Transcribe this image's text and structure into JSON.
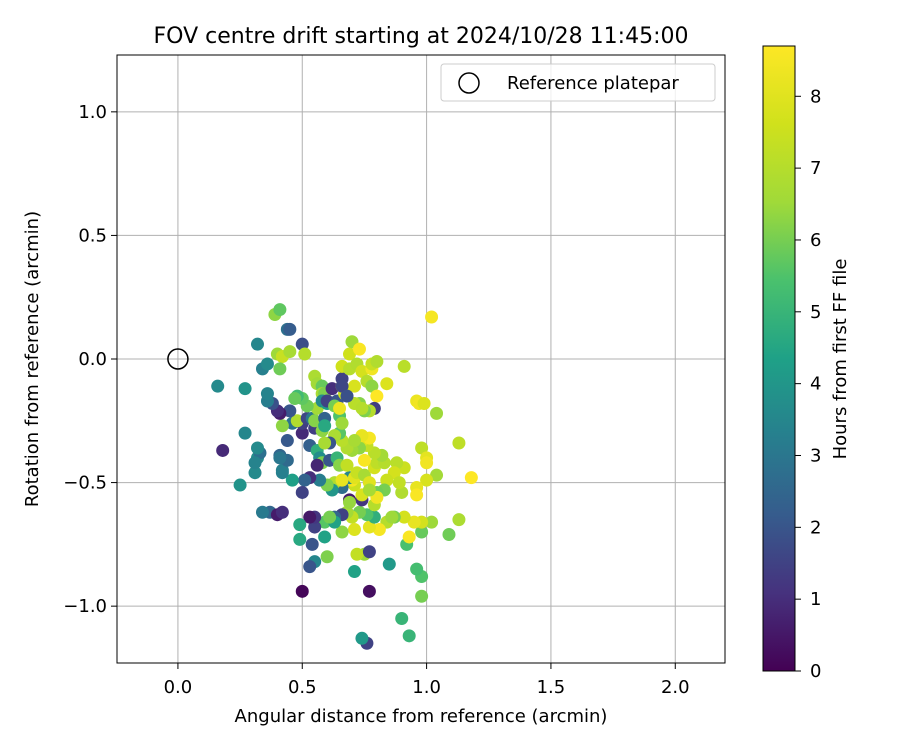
{
  "chart_data": {
    "type": "scatter",
    "title": "FOV centre drift starting at 2024/10/28 11:45:00",
    "xlabel": "Angular distance from reference (arcmin)",
    "ylabel": "Rotation from reference (arcmin)",
    "xlim": [
      -0.245,
      2.2
    ],
    "ylim": [
      -1.23,
      1.23
    ],
    "x_ticks": [
      0.0,
      0.5,
      1.0,
      1.5,
      2.0
    ],
    "x_tick_labels": [
      "0.0",
      "0.5",
      "1.0",
      "1.5",
      "2.0"
    ],
    "y_ticks": [
      -1.0,
      -0.5,
      0.0,
      0.5,
      1.0
    ],
    "y_tick_labels": [
      "−1.0",
      "−0.5",
      "0.0",
      "0.5",
      "1.0"
    ],
    "grid": true,
    "legend": {
      "placement": "top-right",
      "entries": [
        "Reference platepar"
      ]
    },
    "colorbar": {
      "label": "Hours from first FF file",
      "range": [
        0,
        8.7
      ],
      "colormap": "viridis",
      "ticks": [
        0,
        1,
        2,
        3,
        4,
        5,
        6,
        7,
        8
      ],
      "tick_labels": [
        "0",
        "1",
        "2",
        "3",
        "4",
        "5",
        "6",
        "7",
        "8"
      ]
    },
    "reference": {
      "name": "Reference platepar",
      "x": 0.0,
      "y": 0.0
    },
    "series": [
      {
        "points": [
          [
            0.5,
            -0.94,
            0.1
          ],
          [
            0.76,
            -1.15,
            1.5
          ],
          [
            0.74,
            -1.13,
            4.1
          ],
          [
            0.9,
            -1.05,
            5.0
          ],
          [
            0.93,
            -1.12,
            5.0
          ],
          [
            0.98,
            -0.96,
            6.0
          ],
          [
            0.98,
            -0.88,
            5.5
          ],
          [
            0.96,
            -0.85,
            5.3
          ],
          [
            0.92,
            -0.75,
            5.4
          ],
          [
            1.09,
            -0.71,
            5.9
          ],
          [
            1.13,
            -0.65,
            6.8
          ],
          [
            0.93,
            -0.72,
            8.6
          ],
          [
            0.98,
            -0.7,
            5.8
          ],
          [
            1.02,
            -0.66,
            6.5
          ],
          [
            0.98,
            -0.66,
            7.7
          ],
          [
            0.95,
            -0.66,
            8.2
          ],
          [
            0.91,
            -0.64,
            7.7
          ],
          [
            0.87,
            -0.64,
            6.0
          ],
          [
            0.84,
            -0.66,
            7.0
          ],
          [
            0.81,
            -0.69,
            8.5
          ],
          [
            0.77,
            -0.68,
            8.1
          ],
          [
            0.79,
            -0.64,
            4.8
          ],
          [
            0.76,
            -0.63,
            5.5
          ],
          [
            0.73,
            -0.62,
            6.0
          ],
          [
            0.7,
            -0.64,
            7.3
          ],
          [
            0.68,
            -0.62,
            6.6
          ],
          [
            0.66,
            -0.63,
            1.5
          ],
          [
            0.63,
            -0.64,
            2.5
          ],
          [
            0.59,
            -0.66,
            5.6
          ],
          [
            0.55,
            -0.68,
            1.5
          ],
          [
            0.55,
            -0.64,
            1.2
          ],
          [
            0.53,
            -0.64,
            0.5
          ],
          [
            0.49,
            -0.67,
            4.6
          ],
          [
            0.49,
            -0.73,
            4.6
          ],
          [
            0.54,
            -0.75,
            2.0
          ],
          [
            0.59,
            -0.72,
            4.4
          ],
          [
            0.6,
            -0.8,
            6.1
          ],
          [
            0.55,
            -0.82,
            3.5
          ],
          [
            0.53,
            -0.84,
            2.0
          ],
          [
            0.71,
            -0.86,
            4.4
          ],
          [
            0.75,
            -0.79,
            6.5
          ],
          [
            0.72,
            -0.79,
            7.3
          ],
          [
            0.71,
            -0.69,
            7.9
          ],
          [
            0.77,
            -0.78,
            1.5
          ],
          [
            0.77,
            -0.94,
            0.3
          ],
          [
            0.85,
            -0.83,
            4.1
          ],
          [
            0.79,
            -0.59,
            7.0
          ],
          [
            0.74,
            -0.57,
            1.2
          ],
          [
            0.69,
            -0.57,
            0.6
          ],
          [
            0.71,
            -0.51,
            7.5
          ],
          [
            0.7,
            -0.49,
            8.5
          ],
          [
            0.69,
            -0.48,
            3.5
          ],
          [
            0.66,
            -0.52,
            2.7
          ],
          [
            0.63,
            -0.5,
            6.9
          ],
          [
            0.62,
            -0.53,
            4.0
          ],
          [
            0.6,
            -0.51,
            6.1
          ],
          [
            0.57,
            -0.49,
            3.2
          ],
          [
            0.53,
            -0.48,
            1.0
          ],
          [
            0.51,
            -0.49,
            2.4
          ],
          [
            0.5,
            -0.54,
            1.5
          ],
          [
            0.46,
            -0.49,
            4.3
          ],
          [
            0.42,
            -0.46,
            3.3
          ],
          [
            0.37,
            -0.62,
            2.5
          ],
          [
            0.4,
            -0.63,
            0.6
          ],
          [
            0.42,
            -0.62,
            1.0
          ],
          [
            0.34,
            -0.62,
            3.1
          ],
          [
            0.31,
            -0.46,
            3.6
          ],
          [
            0.32,
            -0.4,
            3.7
          ],
          [
            0.33,
            -0.38,
            2.8
          ],
          [
            0.25,
            -0.51,
            3.9
          ],
          [
            0.18,
            -0.37,
            0.9
          ],
          [
            0.27,
            -0.3,
            3.5
          ],
          [
            0.31,
            -0.42,
            3.4
          ],
          [
            0.32,
            -0.36,
            3.6
          ],
          [
            0.41,
            -0.39,
            2.5
          ],
          [
            0.42,
            -0.45,
            3.3
          ],
          [
            0.44,
            -0.41,
            2.6
          ],
          [
            0.41,
            -0.4,
            3.0
          ],
          [
            0.44,
            -0.33,
            2.1
          ],
          [
            0.46,
            -0.26,
            2.9
          ],
          [
            0.5,
            -0.3,
            0.9
          ],
          [
            0.5,
            -0.26,
            1.4
          ],
          [
            0.48,
            -0.25,
            6.9
          ],
          [
            0.52,
            -0.24,
            1.6
          ],
          [
            0.54,
            -0.24,
            3.0
          ],
          [
            0.55,
            -0.28,
            1.4
          ],
          [
            0.53,
            -0.35,
            2.3
          ],
          [
            0.56,
            -0.37,
            4.8
          ],
          [
            0.57,
            -0.4,
            3.7
          ],
          [
            0.58,
            -0.42,
            6.1
          ],
          [
            0.56,
            -0.43,
            0.8
          ],
          [
            0.61,
            -0.41,
            2.0
          ],
          [
            0.64,
            -0.4,
            5.0
          ],
          [
            0.65,
            -0.43,
            6.2
          ],
          [
            0.68,
            -0.43,
            7.3
          ],
          [
            0.66,
            -0.49,
            8.2
          ],
          [
            0.71,
            -0.48,
            8.0
          ],
          [
            0.72,
            -0.46,
            7.4
          ],
          [
            0.75,
            -0.47,
            6.7
          ],
          [
            0.77,
            -0.5,
            8.0
          ],
          [
            0.79,
            -0.44,
            7.7
          ],
          [
            0.8,
            -0.42,
            7.2
          ],
          [
            0.83,
            -0.42,
            7.0
          ],
          [
            0.82,
            -0.39,
            6.6
          ],
          [
            0.79,
            -0.38,
            7.1
          ],
          [
            0.76,
            -0.35,
            7.3
          ],
          [
            0.74,
            -0.33,
            7.9
          ],
          [
            0.73,
            -0.36,
            6.3
          ],
          [
            0.7,
            -0.37,
            6.5
          ],
          [
            0.68,
            -0.36,
            6.9
          ],
          [
            0.66,
            -0.33,
            7.1
          ],
          [
            0.65,
            -0.3,
            5.6
          ],
          [
            0.63,
            -0.31,
            6.8
          ],
          [
            0.61,
            -0.34,
            2.0
          ],
          [
            0.59,
            -0.34,
            6.7
          ],
          [
            0.58,
            -0.29,
            6.3
          ],
          [
            0.55,
            -0.25,
            6.2
          ],
          [
            0.56,
            -0.2,
            6.6
          ],
          [
            0.52,
            -0.19,
            5.9
          ],
          [
            0.5,
            -0.16,
            5.7
          ],
          [
            0.48,
            -0.15,
            5.2
          ],
          [
            0.47,
            -0.16,
            5.8
          ],
          [
            0.45,
            -0.21,
            2.0
          ],
          [
            0.42,
            -0.27,
            6.3
          ],
          [
            0.41,
            -0.22,
            0.6
          ],
          [
            0.4,
            -0.21,
            1.0
          ],
          [
            0.38,
            -0.18,
            1.9
          ],
          [
            0.36,
            -0.17,
            3.2
          ],
          [
            0.36,
            -0.14,
            3.4
          ],
          [
            0.34,
            -0.04,
            3.3
          ],
          [
            0.36,
            -0.02,
            3.6
          ],
          [
            0.32,
            0.06,
            3.5
          ],
          [
            0.27,
            -0.12,
            3.9
          ],
          [
            0.16,
            -0.11,
            3.6
          ],
          [
            0.4,
            0.02,
            6.5
          ],
          [
            0.42,
            0.01,
            7.4
          ],
          [
            0.45,
            0.03,
            6.7
          ],
          [
            0.44,
            0.12,
            2.8
          ],
          [
            0.45,
            0.12,
            2.2
          ],
          [
            0.5,
            0.06,
            1.8
          ],
          [
            0.51,
            0.02,
            7.0
          ],
          [
            0.39,
            0.18,
            6.3
          ],
          [
            0.41,
            0.2,
            5.7
          ],
          [
            0.41,
            -0.04,
            5.9
          ],
          [
            0.55,
            -0.07,
            6.8
          ],
          [
            0.56,
            -0.1,
            6.6
          ],
          [
            0.58,
            -0.11,
            5.8
          ],
          [
            0.58,
            -0.14,
            6.7
          ],
          [
            0.59,
            -0.14,
            6.1
          ],
          [
            0.58,
            -0.17,
            3.6
          ],
          [
            0.6,
            -0.18,
            4.3
          ],
          [
            0.59,
            -0.24,
            2.4
          ],
          [
            0.59,
            -0.27,
            4.6
          ],
          [
            0.62,
            -0.12,
            1.0
          ],
          [
            0.6,
            -0.17,
            1.5
          ],
          [
            0.64,
            -0.17,
            2.0
          ],
          [
            0.63,
            -0.19,
            6.0
          ],
          [
            0.65,
            -0.23,
            5.5
          ],
          [
            0.66,
            -0.26,
            6.5
          ],
          [
            0.65,
            -0.2,
            8.3
          ],
          [
            0.66,
            -0.11,
            8.0
          ],
          [
            0.67,
            -0.14,
            7.5
          ],
          [
            0.66,
            -0.08,
            1.5
          ],
          [
            0.66,
            -0.03,
            7.6
          ],
          [
            0.69,
            -0.04,
            7.0
          ],
          [
            0.69,
            0.02,
            7.6
          ],
          [
            0.7,
            0.07,
            6.5
          ],
          [
            0.72,
            -0.02,
            6.9
          ],
          [
            0.73,
            0.04,
            8.6
          ],
          [
            0.74,
            -0.05,
            7.7
          ],
          [
            0.76,
            -0.09,
            7.0
          ],
          [
            0.78,
            -0.04,
            8.4
          ],
          [
            0.78,
            -0.02,
            7.4
          ],
          [
            0.8,
            -0.01,
            6.9
          ],
          [
            0.78,
            -0.11,
            6.3
          ],
          [
            0.8,
            -0.15,
            8.7
          ],
          [
            0.79,
            -0.2,
            1.4
          ],
          [
            0.77,
            -0.21,
            7.0
          ],
          [
            0.75,
            -0.21,
            6.1
          ],
          [
            0.73,
            -0.18,
            6.2
          ],
          [
            0.71,
            -0.18,
            7.1
          ],
          [
            0.71,
            -0.11,
            7.8
          ],
          [
            0.66,
            -0.11,
            1.6
          ],
          [
            0.68,
            -0.15,
            1.9
          ],
          [
            0.84,
            -0.1,
            7.9
          ],
          [
            0.91,
            -0.03,
            7.1
          ],
          [
            1.02,
            0.17,
            8.5
          ],
          [
            0.96,
            -0.17,
            8.3
          ],
          [
            0.97,
            -0.18,
            8.4
          ],
          [
            0.99,
            -0.18,
            7.9
          ],
          [
            1.04,
            -0.22,
            6.5
          ],
          [
            0.98,
            -0.36,
            7.2
          ],
          [
            1.0,
            -0.4,
            8.1
          ],
          [
            1.0,
            -0.42,
            8.4
          ],
          [
            1.13,
            -0.34,
            7.2
          ],
          [
            1.18,
            -0.48,
            8.7
          ],
          [
            1.04,
            -0.47,
            6.6
          ],
          [
            1.0,
            -0.49,
            7.8
          ],
          [
            0.96,
            -0.52,
            8.2
          ],
          [
            0.96,
            -0.55,
            8.6
          ],
          [
            0.91,
            -0.44,
            7.5
          ],
          [
            0.88,
            -0.42,
            7.1
          ],
          [
            0.87,
            -0.46,
            7.7
          ],
          [
            0.84,
            -0.49,
            7.5
          ],
          [
            0.83,
            -0.53,
            6.0
          ],
          [
            0.8,
            -0.54,
            5.9
          ],
          [
            0.8,
            -0.56,
            8.4
          ],
          [
            0.86,
            -0.64,
            6.5
          ],
          [
            0.9,
            -0.54,
            6.9
          ],
          [
            0.89,
            -0.5,
            7.3
          ],
          [
            0.75,
            -0.41,
            8.6
          ],
          [
            0.77,
            -0.32,
            8.5
          ],
          [
            0.74,
            -0.31,
            8.2
          ],
          [
            0.71,
            -0.33,
            6.7
          ],
          [
            0.74,
            -0.2,
            7.0
          ],
          [
            0.69,
            -0.58,
            6.4
          ],
          [
            0.66,
            -0.7,
            6.3
          ],
          [
            0.63,
            -0.66,
            4.4
          ],
          [
            0.61,
            -0.64,
            6.0
          ],
          [
            0.74,
            -0.55,
            7.8
          ],
          [
            0.77,
            -0.53,
            6.7
          ]
        ]
      }
    ]
  }
}
